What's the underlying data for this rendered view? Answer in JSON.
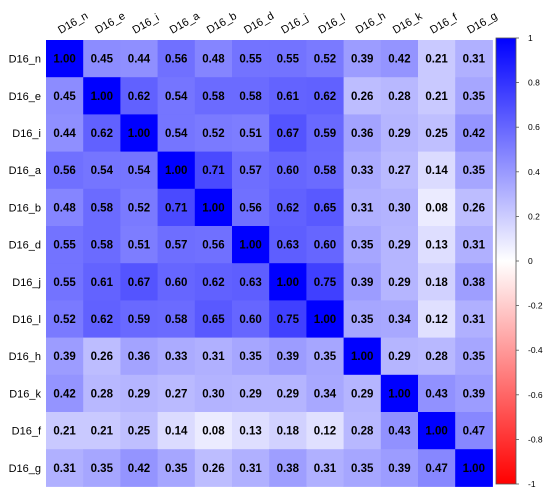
{
  "chart_data": {
    "type": "heatmap",
    "title": "",
    "xlabel": "",
    "ylabel": "",
    "variables": [
      "D16_n",
      "D16_e",
      "D16_i",
      "D16_a",
      "D16_b",
      "D16_d",
      "D16_j",
      "D16_l",
      "D16_h",
      "D16_k",
      "D16_f",
      "D16_g"
    ],
    "matrix": [
      [
        "1.00",
        "0.45",
        "0.44",
        "0.56",
        "0.48",
        "0.55",
        "0.55",
        "0.52",
        "0.39",
        "0.42",
        "0.21",
        "0.31"
      ],
      [
        "0.45",
        "1.00",
        "0.62",
        "0.54",
        "0.58",
        "0.58",
        "0.61",
        "0.62",
        "0.26",
        "0.28",
        "0.21",
        "0.35"
      ],
      [
        "0.44",
        "0.62",
        "1.00",
        "0.54",
        "0.52",
        "0.51",
        "0.67",
        "0.59",
        "0.36",
        "0.29",
        "0.25",
        "0.42"
      ],
      [
        "0.56",
        "0.54",
        "0.54",
        "1.00",
        "0.71",
        "0.57",
        "0.60",
        "0.58",
        "0.33",
        "0.27",
        "0.14",
        "0.35"
      ],
      [
        "0.48",
        "0.58",
        "0.52",
        "0.71",
        "1.00",
        "0.56",
        "0.62",
        "0.65",
        "0.31",
        "0.30",
        "0.08",
        "0.26"
      ],
      [
        "0.55",
        "0.58",
        "0.51",
        "0.57",
        "0.56",
        "1.00",
        "0.63",
        "0.60",
        "0.35",
        "0.29",
        "0.13",
        "0.31"
      ],
      [
        "0.55",
        "0.61",
        "0.67",
        "0.60",
        "0.62",
        "0.63",
        "1.00",
        "0.75",
        "0.39",
        "0.29",
        "0.18",
        "0.38"
      ],
      [
        "0.52",
        "0.62",
        "0.59",
        "0.58",
        "0.65",
        "0.60",
        "0.75",
        "1.00",
        "0.35",
        "0.34",
        "0.12",
        "0.31"
      ],
      [
        "0.39",
        "0.26",
        "0.36",
        "0.33",
        "0.31",
        "0.35",
        "0.39",
        "0.35",
        "1.00",
        "0.29",
        "0.28",
        "0.35"
      ],
      [
        "0.42",
        "0.28",
        "0.29",
        "0.27",
        "0.30",
        "0.29",
        "0.29",
        "0.34",
        "0.29",
        "1.00",
        "0.43",
        "0.39"
      ],
      [
        "0.21",
        "0.21",
        "0.25",
        "0.14",
        "0.08",
        "0.13",
        "0.18",
        "0.12",
        "0.28",
        "0.43",
        "1.00",
        "0.47"
      ],
      [
        "0.31",
        "0.35",
        "0.42",
        "0.35",
        "0.26",
        "0.31",
        "0.38",
        "0.31",
        "0.35",
        "0.39",
        "0.47",
        "1.00"
      ]
    ],
    "colorbar": {
      "range": [
        -1,
        1
      ],
      "ticks": [
        "1",
        "0.8",
        "0.6",
        "0.4",
        "0.2",
        "0",
        "-0.2",
        "-0.4",
        "-0.6",
        "-0.8",
        "-1"
      ],
      "colors": {
        "positive": "#0000ff",
        "zero": "#ffffff",
        "negative": "#ff0000"
      }
    },
    "x_labels_position": "top",
    "x_labels_rotation_deg": -30,
    "colorbar_placement": "right",
    "grid": false
  }
}
